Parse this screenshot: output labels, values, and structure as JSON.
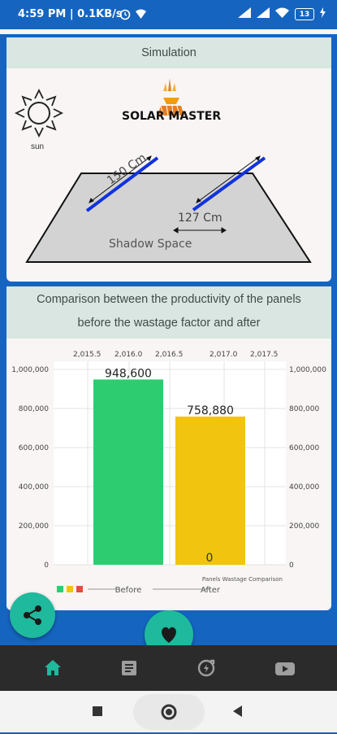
{
  "status_bar": {
    "time_info": "4:59 PM | 0.1KB/s",
    "battery": "13"
  },
  "simulation": {
    "title": "Simulation",
    "app_name": "SOLAR MASTER",
    "sun_label": "sun",
    "panel_length_label": "150 Cm",
    "panel_gap_label": "127 Cm",
    "shadow_label": "Shadow Space",
    "icons": [
      "sun-icon",
      "solar-master-logo-icon"
    ]
  },
  "comparison": {
    "title_line1": "Comparison between the productivity of the panels",
    "title_line2": "before the wastage factor and after"
  },
  "chart_data": {
    "type": "bar",
    "categories": [
      "Before",
      "After"
    ],
    "values": [
      948600,
      758880
    ],
    "value_labels": [
      "948,600",
      "758,880"
    ],
    "extra_value_label": "0",
    "top_axis_ticks": [
      "2,015.5",
      "2,016.0",
      "2,016.5",
      "2,017.0",
      "2,017.5"
    ],
    "left_axis_ticks": [
      "1,000,000",
      "800,000",
      "600,000",
      "400,000",
      "200,000",
      "0"
    ],
    "right_axis_ticks": [
      "1,000,000",
      "800,000",
      "600,000",
      "400,000",
      "200,000",
      "0"
    ],
    "ylim": [
      0,
      1000000
    ],
    "description": "Panels Wastage Comparison",
    "legend_colors": [
      "#2ecc71",
      "#f1c40f",
      "#e74c3c"
    ],
    "bar_colors": [
      "#2ecc71",
      "#f1c40f"
    ]
  },
  "bottom_nav": {
    "items": [
      "home-icon",
      "article-icon",
      "refresh-icon",
      "youtube-icon"
    ],
    "active_color": "#1fb99d"
  },
  "fabs": {
    "share": "share-icon",
    "favorite": "heart-icon"
  },
  "system_nav": [
    "recents-icon",
    "home-button-icon",
    "back-icon"
  ]
}
